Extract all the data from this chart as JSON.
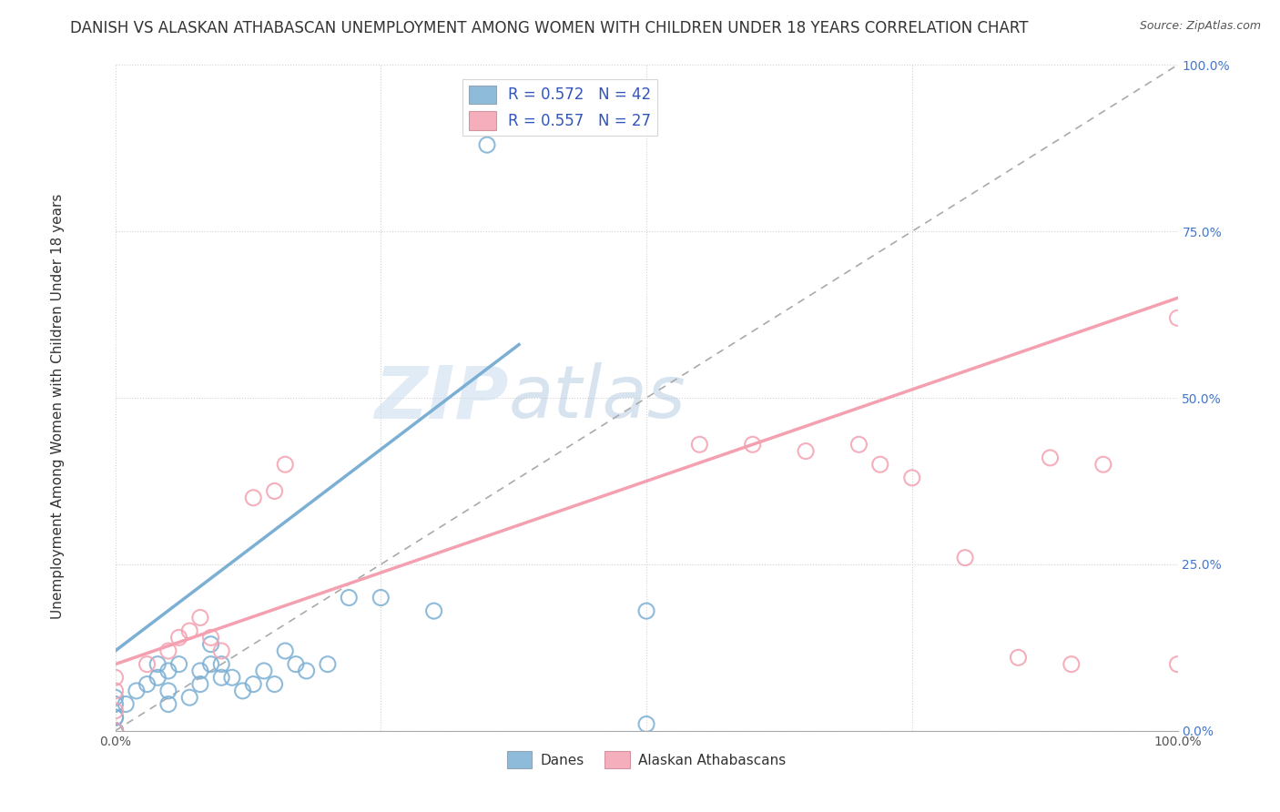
{
  "title": "DANISH VS ALASKAN ATHABASCAN UNEMPLOYMENT AMONG WOMEN WITH CHILDREN UNDER 18 YEARS CORRELATION CHART",
  "source": "Source: ZipAtlas.com",
  "ylabel": "Unemployment Among Women with Children Under 18 years",
  "danes_color": "#7BAFD4",
  "athabascan_color": "#F4A0B0",
  "danes_R": 0.572,
  "danes_N": 42,
  "athabascan_R": 0.557,
  "athabascan_N": 27,
  "danes_scatter_x": [
    0.0,
    0.0,
    0.0,
    0.0,
    0.0,
    0.0,
    0.0,
    0.0,
    0.0,
    0.0,
    0.0,
    0.01,
    0.02,
    0.03,
    0.04,
    0.04,
    0.05,
    0.05,
    0.05,
    0.06,
    0.07,
    0.08,
    0.08,
    0.09,
    0.09,
    0.1,
    0.1,
    0.11,
    0.12,
    0.13,
    0.14,
    0.15,
    0.16,
    0.17,
    0.18,
    0.2,
    0.22,
    0.25,
    0.3,
    0.35,
    0.5,
    0.5
  ],
  "danes_scatter_y": [
    0.0,
    0.0,
    0.0,
    0.0,
    0.0,
    0.0,
    0.0,
    0.02,
    0.02,
    0.04,
    0.05,
    0.04,
    0.06,
    0.07,
    0.08,
    0.1,
    0.04,
    0.06,
    0.09,
    0.1,
    0.05,
    0.07,
    0.09,
    0.1,
    0.13,
    0.08,
    0.1,
    0.08,
    0.06,
    0.07,
    0.09,
    0.07,
    0.12,
    0.1,
    0.09,
    0.1,
    0.2,
    0.2,
    0.18,
    0.88,
    0.01,
    0.18
  ],
  "athabascan_scatter_x": [
    0.0,
    0.0,
    0.0,
    0.0,
    0.03,
    0.05,
    0.06,
    0.07,
    0.08,
    0.09,
    0.1,
    0.13,
    0.15,
    0.16,
    0.55,
    0.6,
    0.65,
    0.7,
    0.72,
    0.75,
    0.8,
    0.85,
    0.88,
    0.9,
    0.93,
    1.0,
    1.0
  ],
  "athabascan_scatter_y": [
    0.0,
    0.03,
    0.06,
    0.08,
    0.1,
    0.12,
    0.14,
    0.15,
    0.17,
    0.14,
    0.12,
    0.35,
    0.36,
    0.4,
    0.43,
    0.43,
    0.42,
    0.43,
    0.4,
    0.38,
    0.26,
    0.11,
    0.41,
    0.1,
    0.4,
    0.62,
    0.1
  ],
  "danes_line": [
    0.0,
    0.38,
    0.0,
    0.12,
    0.58
  ],
  "athabascan_line": [
    0.0,
    1.0,
    0.1,
    0.65
  ],
  "diagonal_line": [
    0.0,
    1.0
  ],
  "watermark_zip": "ZIP",
  "watermark_atlas": "atlas",
  "background_color": "#FFFFFF",
  "grid_color": "#CCCCCC",
  "title_fontsize": 12,
  "label_fontsize": 11,
  "tick_fontsize": 10,
  "legend_fontsize": 12
}
